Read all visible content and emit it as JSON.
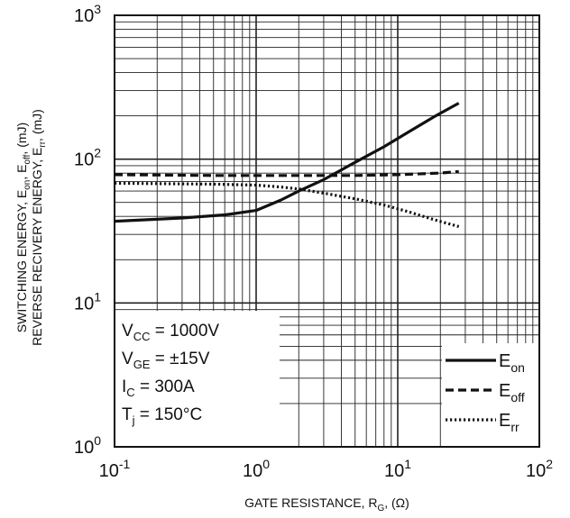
{
  "chart_data": {
    "type": "line",
    "title": "",
    "xlabel": {
      "main": "GATE RESISTANCE, R",
      "sub": "G",
      "tail": ", (Ω)"
    },
    "ylabel_line1": {
      "parts": [
        {
          "t": "SWITCHING ENERGY, E",
          "s": false
        },
        {
          "t": "on",
          "s": true
        },
        {
          "t": ", E",
          "s": false
        },
        {
          "t": "off",
          "s": true
        },
        {
          "t": ", (mJ)",
          "s": false
        }
      ]
    },
    "ylabel_line2": {
      "parts": [
        {
          "t": "REVERSE RECIVERY ENERGY, E",
          "s": false
        },
        {
          "t": "rr",
          "s": true
        },
        {
          "t": ", (mJ)",
          "s": false
        }
      ]
    },
    "x_scale": "log",
    "y_scale": "log",
    "xlim": [
      0.1,
      100
    ],
    "ylim": [
      1,
      1000
    ],
    "x_ticks": [
      {
        "base": "10",
        "exp": "-1"
      },
      {
        "base": "10",
        "exp": "0"
      },
      {
        "base": "10",
        "exp": "1"
      },
      {
        "base": "10",
        "exp": "2"
      }
    ],
    "y_ticks": [
      {
        "base": "10",
        "exp": "0"
      },
      {
        "base": "10",
        "exp": "1"
      },
      {
        "base": "10",
        "exp": "2"
      },
      {
        "base": "10",
        "exp": "3"
      }
    ],
    "grid": true,
    "conditions": [
      {
        "main": "V",
        "sub": "CC",
        "rest": " = 1000V"
      },
      {
        "main": "V",
        "sub": "GE",
        "rest": " = ±15V"
      },
      {
        "main": "I",
        "sub": "C",
        "rest": "  = 300A"
      },
      {
        "main": "T",
        "sub": "j",
        "rest": " = 150°C"
      }
    ],
    "legend_position": "bottom-right",
    "series": [
      {
        "name": "E",
        "sub": "on",
        "style": "solid",
        "x": [
          0.1,
          0.3,
          0.6,
          1.0,
          1.5,
          2.0,
          3.0,
          5.0,
          8.0,
          12.0,
          18.0,
          27.0
        ],
        "y": [
          37,
          39,
          41,
          44,
          52,
          60,
          72,
          95,
          122,
          155,
          197,
          245
        ]
      },
      {
        "name": "E",
        "sub": "off",
        "style": "dashed",
        "x": [
          0.1,
          0.5,
          1.0,
          2.0,
          5.0,
          10.0,
          20.0,
          27.0
        ],
        "y": [
          78,
          77,
          77,
          77,
          77,
          78,
          80,
          82
        ]
      },
      {
        "name": "E",
        "sub": "rr",
        "style": "dotted",
        "x": [
          0.1,
          0.5,
          1.0,
          1.5,
          2.0,
          3.0,
          5.0,
          8.0,
          12.0,
          18.0,
          27.0
        ],
        "y": [
          68,
          67,
          66,
          64,
          62,
          58,
          53,
          48,
          43,
          38,
          34
        ]
      }
    ]
  }
}
